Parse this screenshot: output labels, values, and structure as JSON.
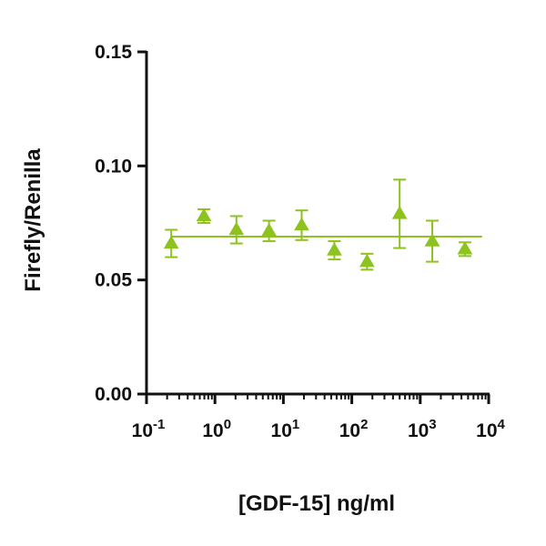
{
  "chart_data": {
    "type": "scatter",
    "title": "",
    "xlabel": "[GDF-15] ng/ml",
    "ylabel": "Firefly/Renilla",
    "xscale": "log10",
    "xlim": [
      0.1,
      10000
    ],
    "ylim": [
      0,
      0.15
    ],
    "x_ticks": [
      {
        "base": "10",
        "exp": "-1",
        "value": 0.1
      },
      {
        "base": "10",
        "exp": "0",
        "value": 1
      },
      {
        "base": "10",
        "exp": "1",
        "value": 10
      },
      {
        "base": "10",
        "exp": "2",
        "value": 100
      },
      {
        "base": "10",
        "exp": "3",
        "value": 1000
      },
      {
        "base": "10",
        "exp": "4",
        "value": 10000
      }
    ],
    "y_ticks": [
      {
        "label": "0.00",
        "value": 0
      },
      {
        "label": "0.05",
        "value": 0.05
      },
      {
        "label": "0.10",
        "value": 0.1
      },
      {
        "label": "0.15",
        "value": 0.15
      }
    ],
    "series": [
      {
        "name": "GDF-15",
        "color": "#8dc21f",
        "marker": "triangle",
        "points": [
          {
            "x": 0.23,
            "y": 0.066,
            "err": 0.006
          },
          {
            "x": 0.69,
            "y": 0.078,
            "err": 0.003
          },
          {
            "x": 2.06,
            "y": 0.072,
            "err": 0.006
          },
          {
            "x": 6.17,
            "y": 0.0715,
            "err": 0.0045
          },
          {
            "x": 18.5,
            "y": 0.074,
            "err": 0.0065
          },
          {
            "x": 55.6,
            "y": 0.063,
            "err": 0.004
          },
          {
            "x": 167,
            "y": 0.058,
            "err": 0.0035
          },
          {
            "x": 500,
            "y": 0.079,
            "err": 0.015
          },
          {
            "x": 1500,
            "y": 0.067,
            "err": 0.009
          },
          {
            "x": 4500,
            "y": 0.0635,
            "err": 0.003
          }
        ],
        "fit_line": {
          "y": 0.069,
          "x_from": 0.23,
          "x_to": 8000
        }
      }
    ]
  }
}
